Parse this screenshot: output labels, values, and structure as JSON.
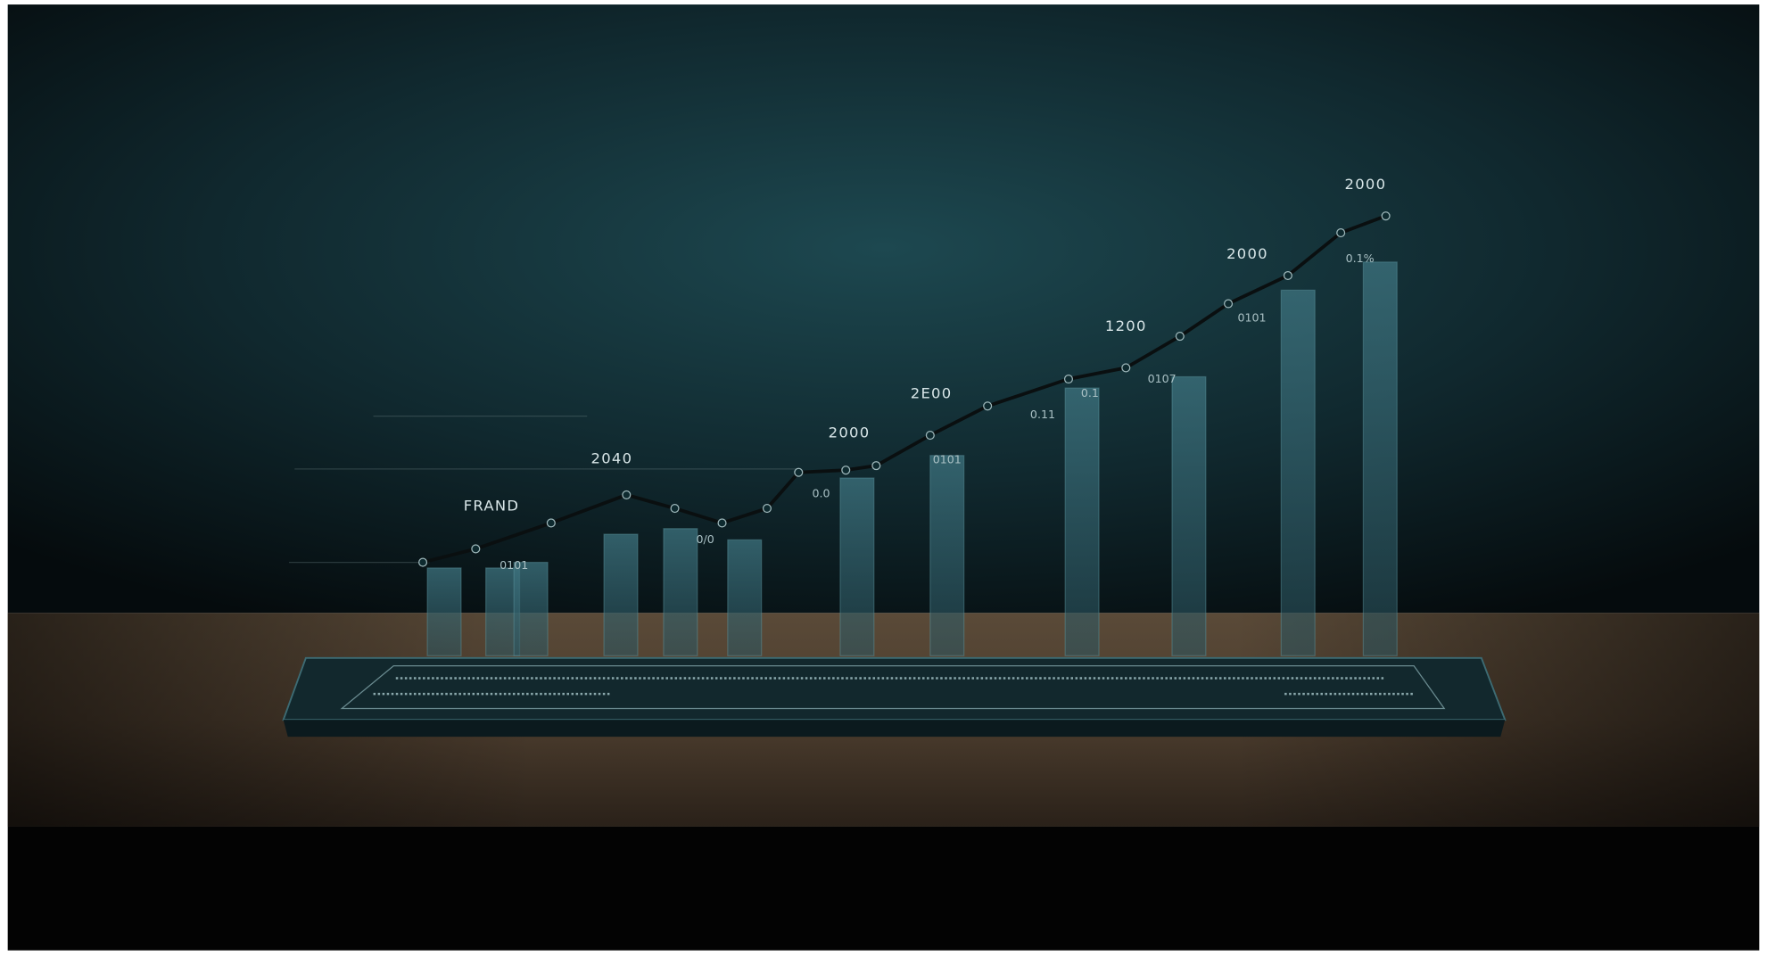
{
  "labels": [
    "2000",
    "2000",
    "1200",
    "2E00",
    "2000",
    "2040",
    "FRAND"
  ],
  "small_labels": [
    "0.1%",
    "0101",
    "0107",
    "0.1",
    "0.11",
    "0101",
    "0.0",
    "0/0",
    "0101"
  ]
}
